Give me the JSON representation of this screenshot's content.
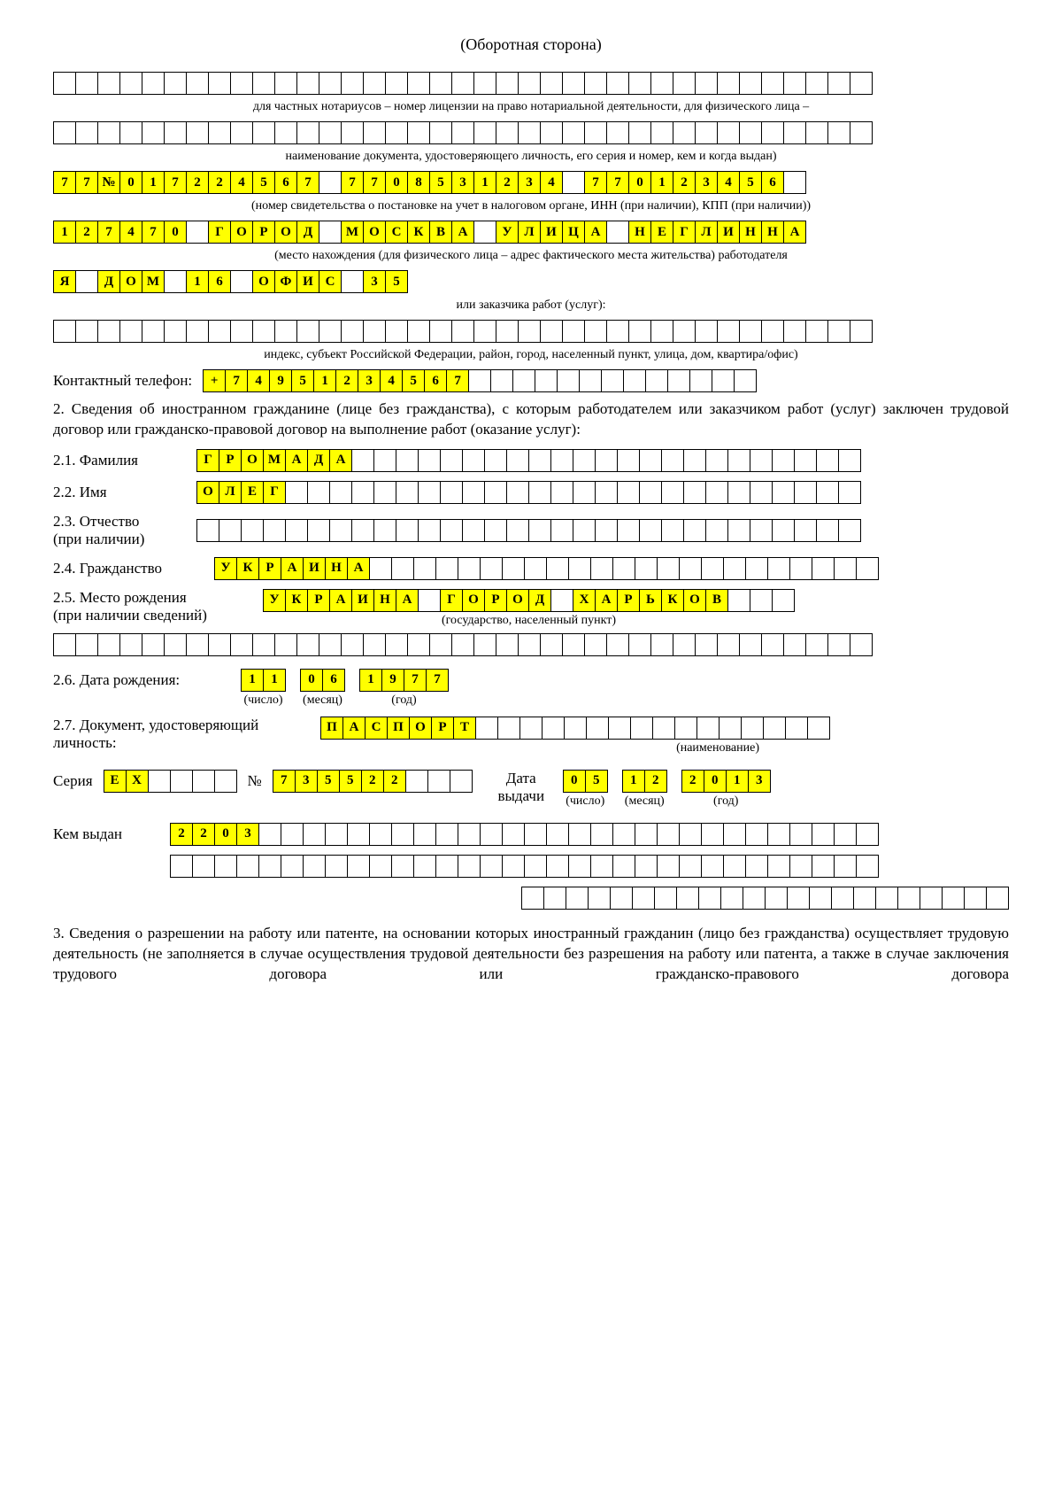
{
  "title": "(Оборотная сторона)",
  "row1_cells": 37,
  "caption1": "для частных нотариусов – номер лицензии на право нотариальной деятельности, для физического лица –",
  "row2_cells": 37,
  "caption2": "наименование документа, удостоверяющего личность, его серия и номер, кем и когда выдан)",
  "row3": [
    "7",
    "7",
    "№",
    "0",
    "1",
    "7",
    "2",
    "2",
    "4",
    "5",
    "6",
    "7",
    "",
    "7",
    "7",
    "0",
    "8",
    "5",
    "3",
    "1",
    "2",
    "3",
    "4",
    "",
    "7",
    "7",
    "0",
    "1",
    "2",
    "3",
    "4",
    "5",
    "6",
    ""
  ],
  "caption3": "(номер свидетельства о постановке на учет в налоговом органе, ИНН (при наличии), КПП (при наличии))",
  "row4": [
    "1",
    "2",
    "7",
    "4",
    "7",
    "0",
    "",
    "Г",
    "О",
    "Р",
    "О",
    "Д",
    "",
    "М",
    "О",
    "С",
    "К",
    "В",
    "А",
    "",
    "У",
    "Л",
    "И",
    "Ц",
    "А",
    "",
    "Н",
    "Е",
    "Г",
    "Л",
    "И",
    "Н",
    "Н",
    "А"
  ],
  "caption4": "(место нахождения (для физического лица – адрес фактического места жительства) работодателя",
  "row5": [
    "Я",
    "",
    "Д",
    "О",
    "М",
    "",
    "1",
    "6",
    "",
    "О",
    "Ф",
    "И",
    "С",
    "",
    "3",
    "5"
  ],
  "caption5": "или заказчика работ (услуг):",
  "row6_cells": 37,
  "caption6": "индекс, субъект Российской Федерации, район, город, населенный пункт, улица, дом, квартира/офис)",
  "phone_label": "Контактный телефон:",
  "phone": [
    "+",
    "7",
    "4",
    "9",
    "5",
    "1",
    "2",
    "3",
    "4",
    "5",
    "6",
    "7",
    "",
    "",
    "",
    "",
    "",
    "",
    "",
    "",
    "",
    "",
    "",
    "",
    ""
  ],
  "section2": "2. Сведения об иностранном гражданине (лице без гражданства), с которым работодателем или заказчиком работ (услуг) заключен трудовой договор или гражданско-правовой договор на выполнение работ (оказание услуг):",
  "f21_label": "2.1. Фамилия",
  "f21": [
    "Г",
    "Р",
    "О",
    "М",
    "А",
    "Д",
    "А",
    "",
    "",
    "",
    "",
    "",
    "",
    "",
    "",
    "",
    "",
    "",
    "",
    "",
    "",
    "",
    "",
    "",
    "",
    "",
    "",
    "",
    "",
    ""
  ],
  "f22_label": "2.2. Имя",
  "f22": [
    "О",
    "Л",
    "Е",
    "Г",
    "",
    "",
    "",
    "",
    "",
    "",
    "",
    "",
    "",
    "",
    "",
    "",
    "",
    "",
    "",
    "",
    "",
    "",
    "",
    "",
    "",
    "",
    "",
    "",
    "",
    ""
  ],
  "f23_label1": "2.3. Отчество",
  "f23_label2": "(при наличии)",
  "f23_cells": 30,
  "f24_label": "2.4. Гражданство",
  "f24": [
    "У",
    "К",
    "Р",
    "А",
    "И",
    "Н",
    "А",
    "",
    "",
    "",
    "",
    "",
    "",
    "",
    "",
    "",
    "",
    "",
    "",
    "",
    "",
    "",
    "",
    "",
    "",
    "",
    "",
    "",
    "",
    ""
  ],
  "f25_label1": "2.5. Место рождения",
  "f25_label2": "(при наличии сведений)",
  "f25": [
    "У",
    "К",
    "Р",
    "А",
    "И",
    "Н",
    "А",
    "",
    "Г",
    "О",
    "Р",
    "О",
    "Д",
    "",
    "Х",
    "А",
    "Р",
    "Ь",
    "К",
    "О",
    "В",
    "",
    "",
    ""
  ],
  "caption25": "(государство, населенный пункт)",
  "row_empty37": 37,
  "f26_label": "2.6. Дата рождения:",
  "f26_day": [
    "1",
    "1"
  ],
  "f26_month": [
    "0",
    "6"
  ],
  "f26_year": [
    "1",
    "9",
    "7",
    "7"
  ],
  "cap_day": "(число)",
  "cap_month": "(месяц)",
  "cap_year": "(год)",
  "f27_label1": "2.7. Документ, удостоверяющий",
  "f27_label2": "личность:",
  "f27": [
    "П",
    "А",
    "С",
    "П",
    "О",
    "Р",
    "Т",
    "",
    "",
    "",
    "",
    "",
    "",
    "",
    "",
    "",
    "",
    "",
    "",
    "",
    "",
    "",
    ""
  ],
  "caption27": "(наименование)",
  "series_label": "Серия",
  "series": [
    "Е",
    "Х",
    "",
    "",
    "",
    ""
  ],
  "num_label": "№",
  "num": [
    "7",
    "3",
    "5",
    "5",
    "2",
    "2",
    "",
    "",
    ""
  ],
  "issue_label1": "Дата",
  "issue_label2": "выдачи",
  "issue_day": [
    "0",
    "5"
  ],
  "issue_month": [
    "1",
    "2"
  ],
  "issue_year": [
    "2",
    "0",
    "1",
    "3"
  ],
  "issued_by_label": "Кем выдан",
  "issued_by_r1": [
    "2",
    "2",
    "0",
    "3",
    "",
    "",
    "",
    "",
    "",
    "",
    "",
    "",
    "",
    "",
    "",
    "",
    "",
    "",
    "",
    "",
    "",
    "",
    "",
    "",
    "",
    "",
    "",
    "",
    "",
    "",
    "",
    ""
  ],
  "issued_by_r2_cells": 32,
  "issued_by_r3_cells": 22,
  "section3": "3. Сведения о разрешении на работу или патенте, на основании которых иностранный гражданин (лицо без гражданства) осуществляет трудовую деятельность (не заполняется в случае осуществления трудовой деятельности без разрешения на работу или патента, а также в случае заключения трудового договора или гражданско-правового договора",
  "highlight_color": "#ffff00",
  "cell_border": "#000000"
}
